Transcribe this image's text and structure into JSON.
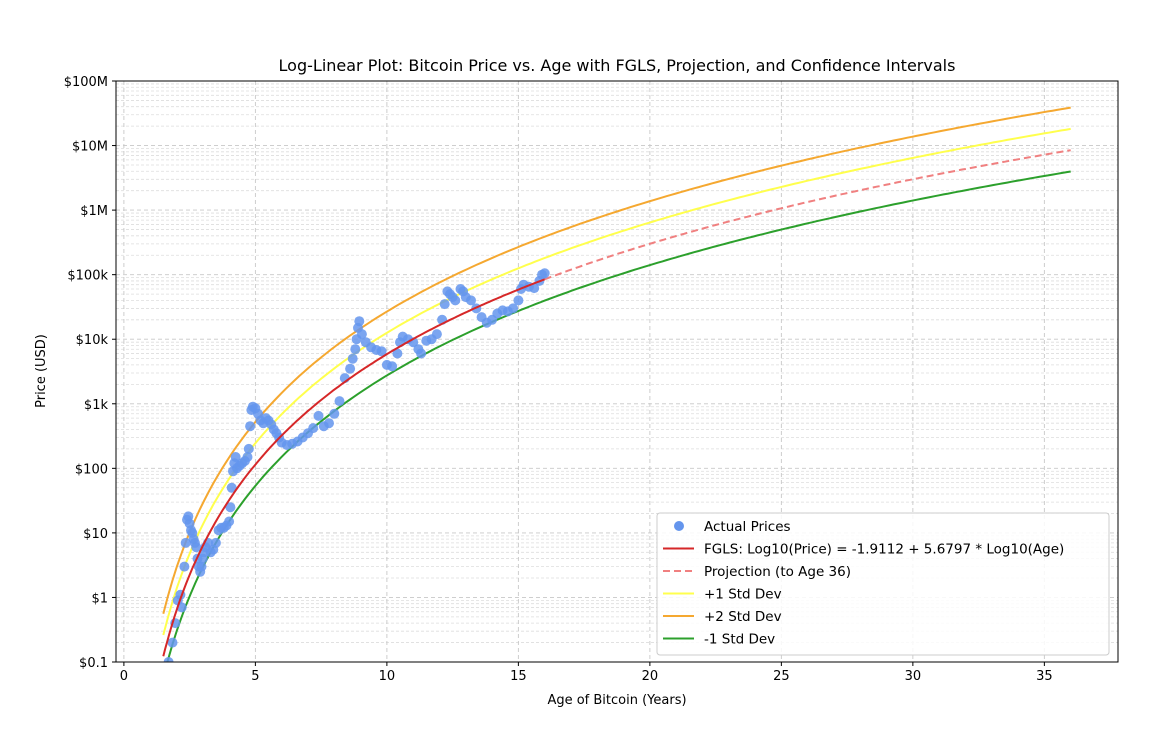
{
  "chart_data": {
    "type": "scatter",
    "title": "Log-Linear Plot: Bitcoin Price vs. Age with FGLS, Projection, and Confidence Intervals",
    "xlabel": "Age of Bitcoin (Years)",
    "ylabel": "Price (USD)",
    "xlim": [
      -0.3,
      37.8
    ],
    "ylim": [
      0.1,
      100000000
    ],
    "y_scale": "log",
    "grid": true,
    "legend_position": "lower right",
    "x_ticks": [
      0,
      5,
      10,
      15,
      20,
      25,
      30,
      35
    ],
    "x_tick_labels": [
      "0",
      "5",
      "10",
      "15",
      "20",
      "25",
      "30",
      "35"
    ],
    "y_ticks": [
      0.1,
      1,
      10,
      100,
      1000,
      10000,
      100000,
      1000000,
      10000000,
      100000000
    ],
    "y_tick_labels": [
      "$0.1",
      "$1",
      "$10",
      "$100",
      "$1k",
      "$10k",
      "$100k",
      "$1M",
      "$10M",
      "$100M"
    ],
    "fit": {
      "intercept": -1.9112,
      "slope": 5.6797,
      "std_dev_log10": 0.33
    },
    "series": [
      {
        "name": "Actual Prices",
        "kind": "scatter",
        "color": "#6495ED",
        "points": [
          [
            1.7,
            0.1
          ],
          [
            1.85,
            0.2
          ],
          [
            1.95,
            0.4
          ],
          [
            2.05,
            0.9
          ],
          [
            2.15,
            1.1
          ],
          [
            2.2,
            0.7
          ],
          [
            2.3,
            3
          ],
          [
            2.35,
            7
          ],
          [
            2.4,
            16
          ],
          [
            2.45,
            18
          ],
          [
            2.5,
            14
          ],
          [
            2.55,
            11
          ],
          [
            2.6,
            10
          ],
          [
            2.65,
            8
          ],
          [
            2.7,
            7
          ],
          [
            2.75,
            6
          ],
          [
            2.8,
            4
          ],
          [
            2.85,
            3
          ],
          [
            2.9,
            2.5
          ],
          [
            2.95,
            3
          ],
          [
            3.0,
            4
          ],
          [
            3.05,
            5
          ],
          [
            3.1,
            6
          ],
          [
            3.2,
            7
          ],
          [
            3.3,
            5
          ],
          [
            3.4,
            5.5
          ],
          [
            3.5,
            7
          ],
          [
            3.6,
            11
          ],
          [
            3.7,
            12
          ],
          [
            3.8,
            12
          ],
          [
            3.9,
            13
          ],
          [
            4.0,
            15
          ],
          [
            4.05,
            25
          ],
          [
            4.1,
            50
          ],
          [
            4.15,
            90
          ],
          [
            4.2,
            120
          ],
          [
            4.25,
            150
          ],
          [
            4.3,
            100
          ],
          [
            4.4,
            110
          ],
          [
            4.5,
            120
          ],
          [
            4.6,
            130
          ],
          [
            4.7,
            150
          ],
          [
            4.75,
            200
          ],
          [
            4.8,
            450
          ],
          [
            4.85,
            800
          ],
          [
            4.9,
            900
          ],
          [
            5.0,
            850
          ],
          [
            5.1,
            700
          ],
          [
            5.2,
            550
          ],
          [
            5.3,
            500
          ],
          [
            5.4,
            600
          ],
          [
            5.5,
            550
          ],
          [
            5.6,
            480
          ],
          [
            5.7,
            400
          ],
          [
            5.8,
            350
          ],
          [
            5.9,
            300
          ],
          [
            6.0,
            250
          ],
          [
            6.2,
            230
          ],
          [
            6.4,
            240
          ],
          [
            6.6,
            260
          ],
          [
            6.8,
            300
          ],
          [
            7.0,
            350
          ],
          [
            7.2,
            420
          ],
          [
            7.4,
            650
          ],
          [
            7.6,
            450
          ],
          [
            7.8,
            500
          ],
          [
            8.0,
            700
          ],
          [
            8.2,
            1100
          ],
          [
            8.4,
            2500
          ],
          [
            8.6,
            3500
          ],
          [
            8.7,
            5000
          ],
          [
            8.8,
            7000
          ],
          [
            8.85,
            10000
          ],
          [
            8.9,
            15000
          ],
          [
            8.95,
            19000
          ],
          [
            9.05,
            12000
          ],
          [
            9.2,
            9000
          ],
          [
            9.4,
            7500
          ],
          [
            9.6,
            6800
          ],
          [
            9.8,
            6500
          ],
          [
            10.0,
            4000
          ],
          [
            10.2,
            3800
          ],
          [
            10.4,
            6000
          ],
          [
            10.5,
            9000
          ],
          [
            10.6,
            11000
          ],
          [
            10.8,
            10000
          ],
          [
            11.0,
            9000
          ],
          [
            11.2,
            7000
          ],
          [
            11.3,
            6000
          ],
          [
            11.5,
            9500
          ],
          [
            11.7,
            10000
          ],
          [
            11.9,
            12000
          ],
          [
            12.1,
            20000
          ],
          [
            12.2,
            35000
          ],
          [
            12.3,
            55000
          ],
          [
            12.4,
            50000
          ],
          [
            12.5,
            45000
          ],
          [
            12.6,
            40000
          ],
          [
            12.8,
            60000
          ],
          [
            12.9,
            55000
          ],
          [
            13.0,
            45000
          ],
          [
            13.2,
            40000
          ],
          [
            13.4,
            30000
          ],
          [
            13.6,
            22000
          ],
          [
            13.8,
            18000
          ],
          [
            14.0,
            20000
          ],
          [
            14.2,
            25000
          ],
          [
            14.4,
            28000
          ],
          [
            14.6,
            27000
          ],
          [
            14.8,
            30000
          ],
          [
            15.0,
            40000
          ],
          [
            15.1,
            60000
          ],
          [
            15.2,
            70000
          ],
          [
            15.4,
            65000
          ],
          [
            15.6,
            62000
          ],
          [
            15.8,
            80000
          ],
          [
            15.9,
            100000
          ],
          [
            16.0,
            105000
          ]
        ]
      },
      {
        "name": "FGLS: Log10(Price) = -1.9112 + 5.6797 * Log10(Age)",
        "kind": "line",
        "color": "#d62728",
        "style": "solid",
        "x_range": [
          1.5,
          16
        ],
        "offset_std": 0
      },
      {
        "name": "Projection (to Age 36)",
        "kind": "line",
        "color": "#f08080",
        "style": "dashed",
        "x_range": [
          16,
          36
        ],
        "offset_std": 0
      },
      {
        "name": "+1 Std Dev",
        "kind": "line",
        "color": "#ffff4d",
        "style": "solid",
        "x_range": [
          1.5,
          36
        ],
        "offset_std": 1
      },
      {
        "name": "+2 Std Dev",
        "kind": "line",
        "color": "#f5a830",
        "style": "solid",
        "x_range": [
          1.5,
          36
        ],
        "offset_std": 2
      },
      {
        "name": "-1 Std Dev",
        "kind": "line",
        "color": "#2ca02c",
        "style": "solid",
        "x_range": [
          1.5,
          36
        ],
        "offset_std": -1
      }
    ]
  }
}
